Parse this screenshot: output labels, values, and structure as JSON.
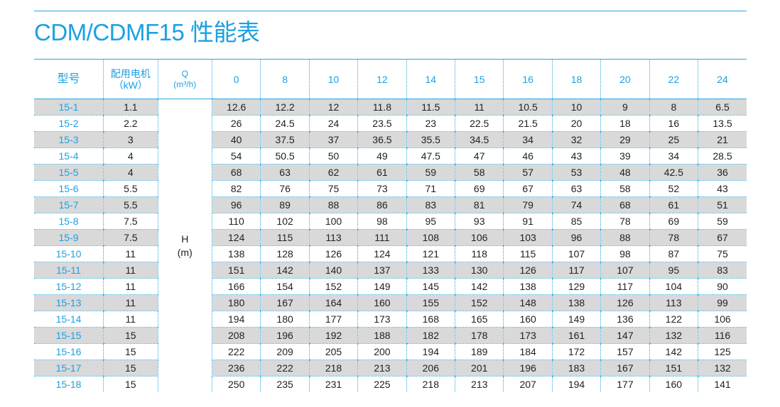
{
  "title": "CDM/CDMF15 性能表",
  "header": {
    "model": "型号",
    "power_line1": "配用电机",
    "power_line2": "（kW）",
    "q_line1": "Q",
    "q_line2": "(m³/h)",
    "flows": [
      "0",
      "8",
      "10",
      "12",
      "14",
      "15",
      "16",
      "18",
      "20",
      "22",
      "24"
    ]
  },
  "h_label_line1": "H",
  "h_label_line2": "(m)",
  "rows": [
    {
      "model": "15-1",
      "power": "1.1",
      "heads": [
        "12.6",
        "12.2",
        "12",
        "11.8",
        "11.5",
        "11",
        "10.5",
        "10",
        "9",
        "8",
        "6.5"
      ]
    },
    {
      "model": "15-2",
      "power": "2.2",
      "heads": [
        "26",
        "24.5",
        "24",
        "23.5",
        "23",
        "22.5",
        "21.5",
        "20",
        "18",
        "16",
        "13.5"
      ]
    },
    {
      "model": "15-3",
      "power": "3",
      "heads": [
        "40",
        "37.5",
        "37",
        "36.5",
        "35.5",
        "34.5",
        "34",
        "32",
        "29",
        "25",
        "21"
      ]
    },
    {
      "model": "15-4",
      "power": "4",
      "heads": [
        "54",
        "50.5",
        "50",
        "49",
        "47.5",
        "47",
        "46",
        "43",
        "39",
        "34",
        "28.5"
      ]
    },
    {
      "model": "15-5",
      "power": "4",
      "heads": [
        "68",
        "63",
        "62",
        "61",
        "59",
        "58",
        "57",
        "53",
        "48",
        "42.5",
        "36"
      ]
    },
    {
      "model": "15-6",
      "power": "5.5",
      "heads": [
        "82",
        "76",
        "75",
        "73",
        "71",
        "69",
        "67",
        "63",
        "58",
        "52",
        "43"
      ]
    },
    {
      "model": "15-7",
      "power": "5.5",
      "heads": [
        "96",
        "89",
        "88",
        "86",
        "83",
        "81",
        "79",
        "74",
        "68",
        "61",
        "51"
      ]
    },
    {
      "model": "15-8",
      "power": "7.5",
      "heads": [
        "110",
        "102",
        "100",
        "98",
        "95",
        "93",
        "91",
        "85",
        "78",
        "69",
        "59"
      ]
    },
    {
      "model": "15-9",
      "power": "7.5",
      "heads": [
        "124",
        "115",
        "113",
        "111",
        "108",
        "106",
        "103",
        "96",
        "88",
        "78",
        "67"
      ]
    },
    {
      "model": "15-10",
      "power": "11",
      "heads": [
        "138",
        "128",
        "126",
        "124",
        "121",
        "118",
        "115",
        "107",
        "98",
        "87",
        "75"
      ]
    },
    {
      "model": "15-11",
      "power": "11",
      "heads": [
        "151",
        "142",
        "140",
        "137",
        "133",
        "130",
        "126",
        "117",
        "107",
        "95",
        "83"
      ]
    },
    {
      "model": "15-12",
      "power": "11",
      "heads": [
        "166",
        "154",
        "152",
        "149",
        "145",
        "142",
        "138",
        "129",
        "117",
        "104",
        "90"
      ]
    },
    {
      "model": "15-13",
      "power": "11",
      "heads": [
        "180",
        "167",
        "164",
        "160",
        "155",
        "152",
        "148",
        "138",
        "126",
        "113",
        "99"
      ]
    },
    {
      "model": "15-14",
      "power": "11",
      "heads": [
        "194",
        "180",
        "177",
        "173",
        "168",
        "165",
        "160",
        "149",
        "136",
        "122",
        "106"
      ]
    },
    {
      "model": "15-15",
      "power": "15",
      "heads": [
        "208",
        "196",
        "192",
        "188",
        "182",
        "178",
        "173",
        "161",
        "147",
        "132",
        "116"
      ]
    },
    {
      "model": "15-16",
      "power": "15",
      "heads": [
        "222",
        "209",
        "205",
        "200",
        "194",
        "189",
        "184",
        "172",
        "157",
        "142",
        "125"
      ]
    },
    {
      "model": "15-17",
      "power": "15",
      "heads": [
        "236",
        "222",
        "218",
        "213",
        "206",
        "201",
        "196",
        "183",
        "167",
        "151",
        "132"
      ]
    },
    {
      "model": "15-18",
      "power": "15",
      "heads": [
        "250",
        "235",
        "231",
        "225",
        "218",
        "213",
        "207",
        "194",
        "177",
        "160",
        "141"
      ]
    }
  ]
}
